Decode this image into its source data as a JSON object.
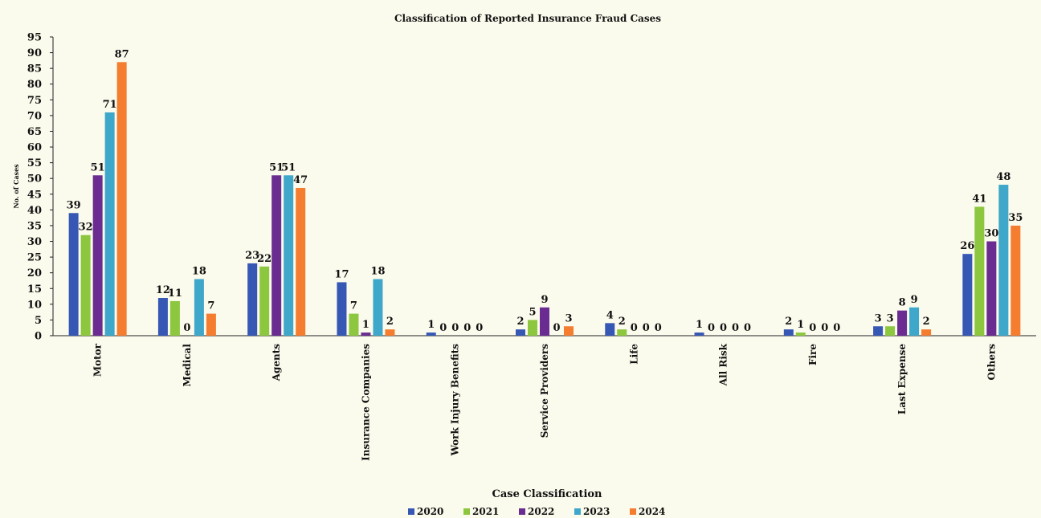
{
  "chart_data": {
    "type": "bar",
    "title": "Classification of Reported Insurance Fraud Cases",
    "xlabel": "Case Classification",
    "ylabel": "No. of Cases",
    "ylim": [
      0,
      95
    ],
    "yticks": [
      0,
      5,
      10,
      15,
      20,
      25,
      30,
      35,
      40,
      45,
      50,
      55,
      60,
      65,
      70,
      75,
      80,
      85,
      90,
      95
    ],
    "grid": false,
    "legend_position": "bottom",
    "categories": [
      "Motor",
      "Medical",
      "Agents",
      "Insurance Companies",
      "Work Injury Benefits",
      "Service Providers",
      "Life",
      "All Risk",
      "Fire",
      "Last Expense",
      "Others"
    ],
    "series": [
      {
        "name": "2020",
        "color": "#3757b5",
        "values": [
          39,
          12,
          23,
          17,
          1,
          2,
          4,
          1,
          2,
          3,
          26
        ]
      },
      {
        "name": "2021",
        "color": "#8dc63f",
        "values": [
          32,
          11,
          22,
          7,
          0,
          5,
          2,
          0,
          1,
          3,
          41
        ]
      },
      {
        "name": "2022",
        "color": "#6a2c91",
        "values": [
          51,
          0,
          51,
          1,
          0,
          9,
          0,
          0,
          0,
          8,
          30
        ]
      },
      {
        "name": "2023",
        "color": "#3fa7c9",
        "values": [
          71,
          18,
          51,
          18,
          0,
          0,
          0,
          0,
          0,
          9,
          48
        ]
      },
      {
        "name": "2024",
        "color": "#f47d30",
        "values": [
          87,
          7,
          47,
          2,
          0,
          3,
          0,
          0,
          0,
          2,
          35
        ]
      }
    ]
  }
}
